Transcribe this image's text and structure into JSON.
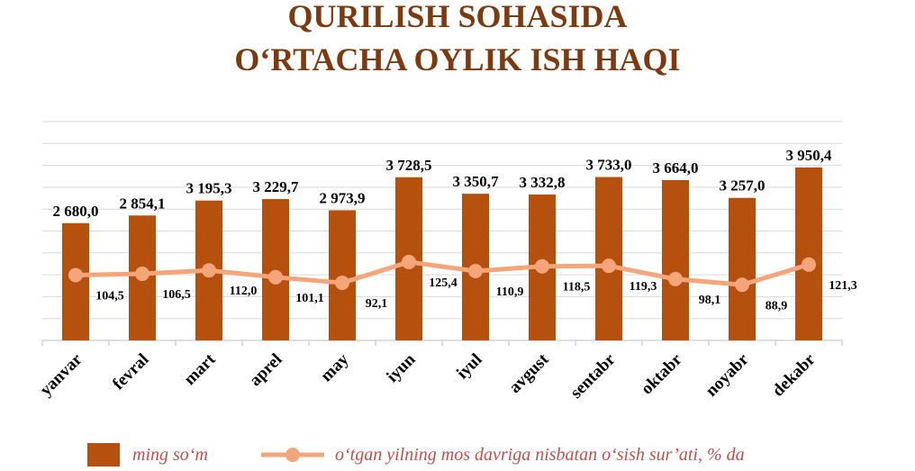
{
  "chart_data": {
    "type": "bar_line",
    "title": [
      "QURILISH SOHASIDA",
      "O‘RTACHA OYLIK ISH HAQI"
    ],
    "categories": [
      "yanvar",
      "fevral",
      "mart",
      "aprel",
      "may",
      "iyun",
      "iyul",
      "avgust",
      "sentabr",
      "oktabr",
      "noyabr",
      "dekabr"
    ],
    "series": [
      {
        "name": "ming so‘m",
        "type": "bar",
        "color": "#b5500f",
        "values": [
          2680.0,
          2854.1,
          3195.3,
          3229.7,
          2973.9,
          3728.5,
          3350.7,
          3332.8,
          3733.0,
          3664.0,
          3257.0,
          3950.4
        ],
        "value_labels": [
          "2 680,0",
          "2 854,1",
          "3 195,3",
          "3 229,7",
          "2 973,9",
          "3 728,5",
          "3 350,7",
          "3 332,8",
          "3 733,0",
          "3 664,0",
          "3 257,0",
          "3 950,4"
        ]
      },
      {
        "name": "o‘tgan yilning mos davriga nisbatan o‘sish sur’ati, % da",
        "type": "line",
        "axis": "y2",
        "color": "#f4a57a",
        "values": [
          104.5,
          106.5,
          112.0,
          101.1,
          92.1,
          125.4,
          110.9,
          118.5,
          119.3,
          98.1,
          88.9,
          121.3
        ],
        "value_labels": [
          "104,5",
          "106,5",
          "112,0",
          "101,1",
          "92,1",
          "125,4",
          "110,9",
          "118,5",
          "119,3",
          "98,1",
          "88,9",
          "121,3"
        ]
      }
    ],
    "ylim": [
      0,
      5000
    ],
    "yticks": [
      0,
      500,
      1000,
      1500,
      2000,
      2500,
      3000,
      3500,
      4000,
      4500,
      5000
    ],
    "y2lim": [
      0,
      350
    ],
    "grid": true
  }
}
